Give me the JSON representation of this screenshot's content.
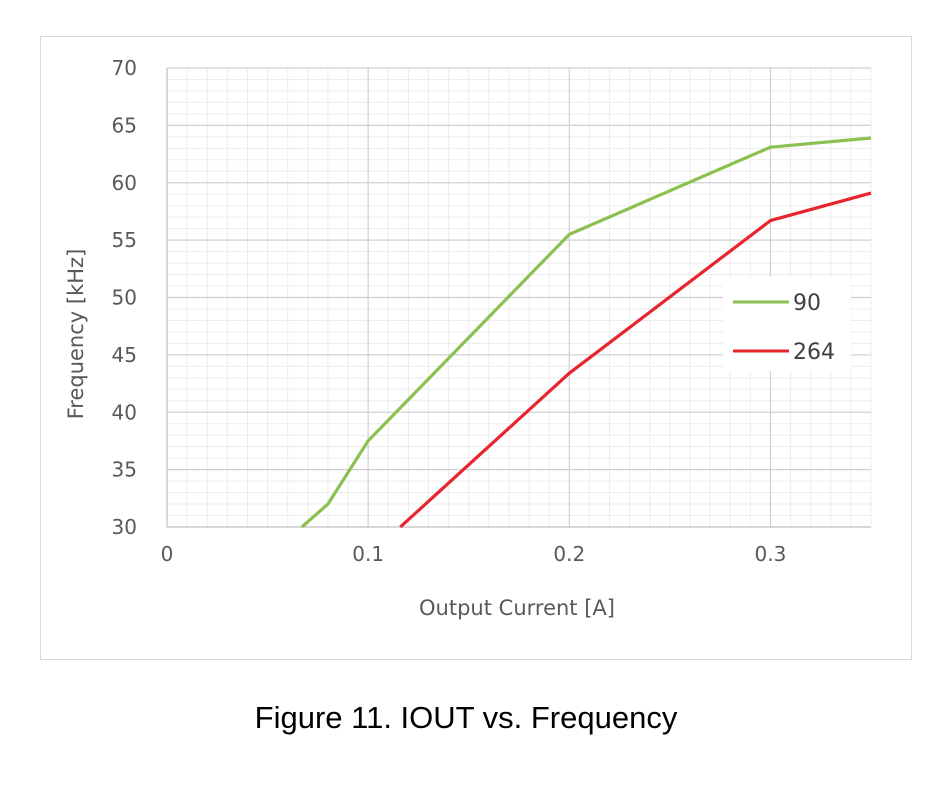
{
  "caption": "Figure 11. IOUT vs. Frequency",
  "chart_data": {
    "type": "line",
    "xlabel": "Output Current [A]",
    "ylabel": "Frequency [kHz]",
    "xlim": [
      0,
      0.35
    ],
    "ylim": [
      30,
      70
    ],
    "x_ticks": [
      0,
      0.1,
      0.2,
      0.3
    ],
    "x_tick_labels": [
      "0",
      "0.1",
      "0.2",
      "0.3"
    ],
    "y_ticks": [
      30,
      35,
      40,
      45,
      50,
      55,
      60,
      65,
      70
    ],
    "y_tick_labels": [
      "30",
      "35",
      "40",
      "45",
      "50",
      "55",
      "60",
      "65",
      "70"
    ],
    "x_minor_step": 0.01,
    "y_minor_step": 1,
    "grid": true,
    "legend_position": "right",
    "series": [
      {
        "name": "90",
        "color": "#8cc152",
        "points": [
          [
            0.067,
            30
          ],
          [
            0.08,
            32
          ],
          [
            0.1,
            37.5
          ],
          [
            0.2,
            55.5
          ],
          [
            0.3,
            63.1
          ],
          [
            0.35,
            63.9
          ]
        ]
      },
      {
        "name": "264",
        "color": "#e8242c",
        "points": [
          [
            0.116,
            30
          ],
          [
            0.2,
            43.4
          ],
          [
            0.3,
            56.7
          ],
          [
            0.35,
            59.1
          ]
        ]
      }
    ]
  }
}
